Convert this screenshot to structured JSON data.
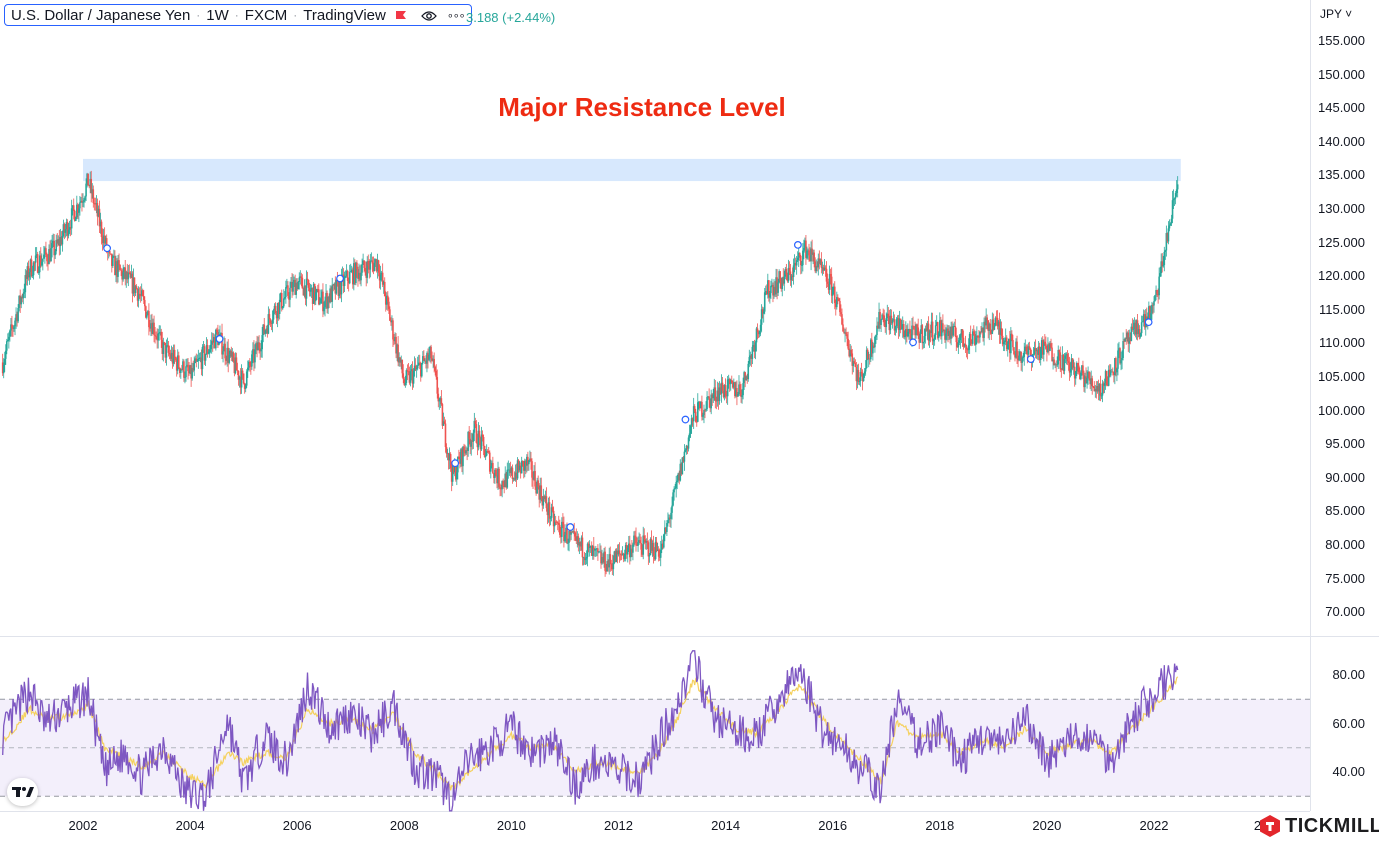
{
  "legend": {
    "symbol": "U.S. Dollar / Japanese Yen",
    "interval": "1W",
    "exchange": "FXCM",
    "source": "TradingView",
    "separator": "·",
    "flag_icon": "flag-icon",
    "eye_icon": "eye-icon",
    "more_icon": "more-icon",
    "more_label": "∘∘∘",
    "change_text": "3.188 (+2.44%)"
  },
  "currency_label": "JPY ˅",
  "annotation": "Major Resistance Level",
  "colors": {
    "up": "#26a69a",
    "down": "#ef5350",
    "resistance_zone": "#d7e8fd",
    "rsi_line": "#7e57c2",
    "rsi_ma": "#f5d15f",
    "rsi_band": "#f3effb",
    "annotation": "#ee2b12"
  },
  "price_axis": [
    "155.000",
    "150.000",
    "145.000",
    "140.000",
    "135.000",
    "130.000",
    "125.000",
    "120.000",
    "115.000",
    "110.000",
    "105.000",
    "100.000",
    "95.000",
    "90.000",
    "85.000",
    "80.000",
    "75.000",
    "70.000"
  ],
  "rsi_axis": [
    "80.00",
    "60.00",
    "40.00"
  ],
  "time_axis": [
    "2002",
    "2004",
    "2006",
    "2008",
    "2010",
    "2012",
    "2014",
    "2016",
    "2018",
    "2020",
    "2022",
    "20"
  ],
  "brand": {
    "name": "TICKMILL"
  },
  "chart_data": [
    {
      "type": "candlestick",
      "title": "U.S. Dollar / Japanese Yen · 1W · FXCM",
      "ylim": [
        67,
        158
      ],
      "xlim": [
        2000.5,
        2024.5
      ],
      "resistance_zone": {
        "from": 134.0,
        "to": 137.3,
        "x_from": 2002.0,
        "x_to": 2022.5,
        "label": "Major Resistance Level"
      },
      "x": [
        2000.5,
        2001.0,
        2001.5,
        2002.0,
        2002.1,
        2002.5,
        2003.0,
        2003.5,
        2004.0,
        2004.5,
        2005.0,
        2005.5,
        2006.0,
        2006.5,
        2007.0,
        2007.5,
        2008.0,
        2008.5,
        2008.9,
        2009.3,
        2009.8,
        2010.3,
        2010.8,
        2011.2,
        2011.8,
        2012.3,
        2012.8,
        2013.4,
        2013.9,
        2014.3,
        2014.8,
        2015.2,
        2015.5,
        2016.0,
        2016.5,
        2016.9,
        2017.5,
        2018.0,
        2018.5,
        2019.0,
        2019.5,
        2020.0,
        2020.5,
        2021.0,
        2021.5,
        2022.0,
        2022.3,
        2022.45
      ],
      "close": [
        107,
        121,
        124,
        132,
        134,
        122,
        118,
        109,
        105,
        111,
        104,
        114,
        119,
        116,
        120,
        122,
        104,
        108,
        90,
        97,
        89,
        92,
        83,
        80,
        77,
        80,
        79,
        99,
        103,
        103,
        118,
        120,
        124,
        118,
        104,
        114,
        111,
        112,
        110,
        113,
        108,
        109,
        106,
        103,
        110,
        115,
        128,
        134
      ]
    },
    {
      "type": "line",
      "title": "RSI",
      "ylim": [
        23,
        93
      ],
      "bands": [
        30,
        50,
        70
      ],
      "x": [
        2000.5,
        2001.0,
        2001.3,
        2001.7,
        2002.1,
        2002.4,
        2002.8,
        2003.1,
        2003.5,
        2003.9,
        2004.3,
        2004.7,
        2005.0,
        2005.4,
        2005.8,
        2006.2,
        2006.6,
        2007.0,
        2007.4,
        2007.8,
        2008.2,
        2008.6,
        2008.9,
        2009.2,
        2009.6,
        2010.0,
        2010.4,
        2010.8,
        2011.2,
        2011.6,
        2012.0,
        2012.4,
        2012.8,
        2013.1,
        2013.4,
        2013.8,
        2014.2,
        2014.6,
        2015.0,
        2015.4,
        2015.8,
        2016.2,
        2016.6,
        2016.9,
        2017.2,
        2017.6,
        2018.0,
        2018.4,
        2018.8,
        2019.2,
        2019.6,
        2020.0,
        2020.4,
        2020.8,
        2021.2,
        2021.6,
        2022.0,
        2022.3,
        2022.45
      ],
      "rsi": [
        55,
        74,
        60,
        66,
        72,
        40,
        48,
        38,
        52,
        32,
        30,
        62,
        35,
        55,
        44,
        76,
        58,
        64,
        55,
        68,
        42,
        38,
        28,
        45,
        50,
        58,
        48,
        52,
        34,
        45,
        40,
        37,
        55,
        68,
        86,
        62,
        56,
        55,
        70,
        82,
        58,
        50,
        40,
        32,
        70,
        52,
        58,
        45,
        55,
        50,
        62,
        45,
        52,
        55,
        45,
        62,
        72,
        80,
        82
      ],
      "rsi_ma": [
        52,
        66,
        62,
        63,
        68,
        50,
        46,
        42,
        48,
        40,
        34,
        48,
        44,
        48,
        46,
        66,
        60,
        62,
        57,
        64,
        48,
        40,
        33,
        40,
        48,
        55,
        50,
        51,
        40,
        44,
        42,
        39,
        50,
        62,
        78,
        66,
        58,
        56,
        66,
        76,
        62,
        52,
        43,
        36,
        60,
        54,
        56,
        48,
        53,
        51,
        58,
        48,
        51,
        53,
        48,
        58,
        67,
        75,
        78
      ]
    }
  ]
}
